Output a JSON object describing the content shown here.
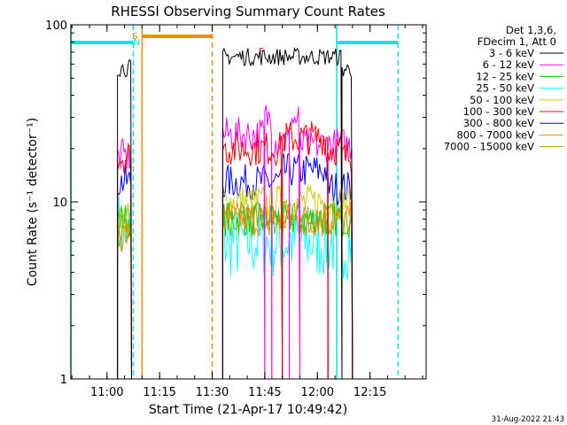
{
  "chart_data": {
    "type": "line",
    "title": "RHESSI Observing Summary Count Rates",
    "ylabel": "Count Rate (s⁻¹ detector⁻¹)",
    "xlabel": "Start Time (21-Apr-17 10:49:42)",
    "x_range": [
      "10:49:42",
      "12:31:00"
    ],
    "y_scale": "log",
    "ylim": [
      1,
      100
    ],
    "x_ticks": [
      "11:00",
      "11:15",
      "11:30",
      "11:45",
      "12:00",
      "12:15"
    ],
    "y_ticks": [
      "1",
      "10",
      "100"
    ],
    "legend": {
      "placement": "right",
      "header": [
        "Det 1,3,6,",
        "FDecim 1, Att 0"
      ]
    },
    "series": [
      {
        "name": "3 - 6 keV",
        "color": "#000000",
        "segments": [
          {
            "from": "11:03",
            "to": "11:07",
            "value": 57
          },
          {
            "from": "11:33",
            "to": "12:07",
            "value": 66
          },
          {
            "from": "12:07",
            "to": "12:10",
            "value": 56
          }
        ]
      },
      {
        "name": "6 - 12 keV",
        "color": "#ff00ff",
        "segments": [
          {
            "from": "11:03",
            "to": "11:07",
            "value": 18
          },
          {
            "from": "11:33",
            "to": "11:45",
            "value": 24
          },
          {
            "from": "11:45",
            "to": "11:47",
            "value": 30
          },
          {
            "from": "11:47",
            "to": "11:52",
            "value": 22
          },
          {
            "from": "11:52",
            "to": "11:55",
            "value": 29
          },
          {
            "from": "11:55",
            "to": "12:10",
            "value": 21
          }
        ]
      },
      {
        "name": "12 - 25 keV",
        "color": "#00cc00",
        "segments": [
          {
            "from": "11:03",
            "to": "11:07",
            "value": 8
          },
          {
            "from": "11:33",
            "to": "12:10",
            "value": 8
          }
        ]
      },
      {
        "name": "25 - 50 keV",
        "color": "#00ffff",
        "segments": [
          {
            "from": "11:03",
            "to": "11:07",
            "value": 7
          },
          {
            "from": "11:33",
            "to": "12:10",
            "value": 6
          }
        ]
      },
      {
        "name": "50 - 100 keV",
        "color": "#cccc00",
        "segments": [
          {
            "from": "11:03",
            "to": "11:07",
            "value": 8
          },
          {
            "from": "11:33",
            "to": "12:10",
            "value": 10
          }
        ]
      },
      {
        "name": "100 - 300 keV",
        "color": "#ff0000",
        "segments": [
          {
            "from": "11:03",
            "to": "11:07",
            "value": 18
          },
          {
            "from": "11:33",
            "to": "11:50",
            "value": 20
          },
          {
            "from": "11:50",
            "to": "12:03",
            "value": 23
          },
          {
            "from": "12:03",
            "to": "12:07",
            "value": 20
          },
          {
            "from": "12:07",
            "to": "12:10",
            "value": 18
          }
        ]
      },
      {
        "name": "300 - 800 keV",
        "color": "#0000ff",
        "segments": [
          {
            "from": "11:03",
            "to": "11:07",
            "value": 13
          },
          {
            "from": "11:33",
            "to": "11:50",
            "value": 13
          },
          {
            "from": "11:50",
            "to": "12:03",
            "value": 15
          },
          {
            "from": "12:03",
            "to": "12:10",
            "value": 12
          }
        ]
      },
      {
        "name": "800 - 7000 keV",
        "color": "#ff8800",
        "segments": [
          {
            "from": "11:03",
            "to": "11:07",
            "value": 6.5
          },
          {
            "from": "11:33",
            "to": "12:10",
            "value": 8
          }
        ]
      },
      {
        "name": "7000 - 15000 keV",
        "color": "#88aa00",
        "segments": [
          {
            "from": "11:03",
            "to": "11:07",
            "value": 7
          },
          {
            "from": "11:33",
            "to": "12:10",
            "value": 8
          }
        ]
      }
    ],
    "markers": {
      "orbit_day_lines": {
        "color": "#00e5e5",
        "style": "solid",
        "times": [
          "10:49:42",
          "12:05:30"
        ]
      },
      "orbit_night_lines": {
        "color": "#00e5e5",
        "style": "dashed",
        "times": [
          "11:07:30",
          "12:23:00"
        ]
      },
      "saa_start_lines": {
        "color": "#ff8800",
        "style": "solid",
        "times": [
          "11:10:00"
        ]
      },
      "saa_end_lines": {
        "color": "#ff8800",
        "style": "dashed",
        "times": [
          "11:30:00"
        ]
      },
      "day_bars": {
        "color": "#00e5e5",
        "intervals": [
          [
            "10:49:42",
            "11:07:30"
          ],
          [
            "12:05:30",
            "12:23:00"
          ]
        ]
      },
      "saa_bars": {
        "color": "#ff8800",
        "intervals": [
          [
            "11:10:00",
            "11:30:00"
          ]
        ]
      },
      "flag_letters": [
        {
          "text": "S",
          "time": "11:08:00",
          "color": "#ff8800"
        },
        {
          "text": "N",
          "time": "11:08:30",
          "color": "#00e5e5"
        },
        {
          "text": "F",
          "time": "11:44:00",
          "color": "#ff0000"
        }
      ]
    },
    "timestamp": "31-Aug-2022 21:43"
  }
}
